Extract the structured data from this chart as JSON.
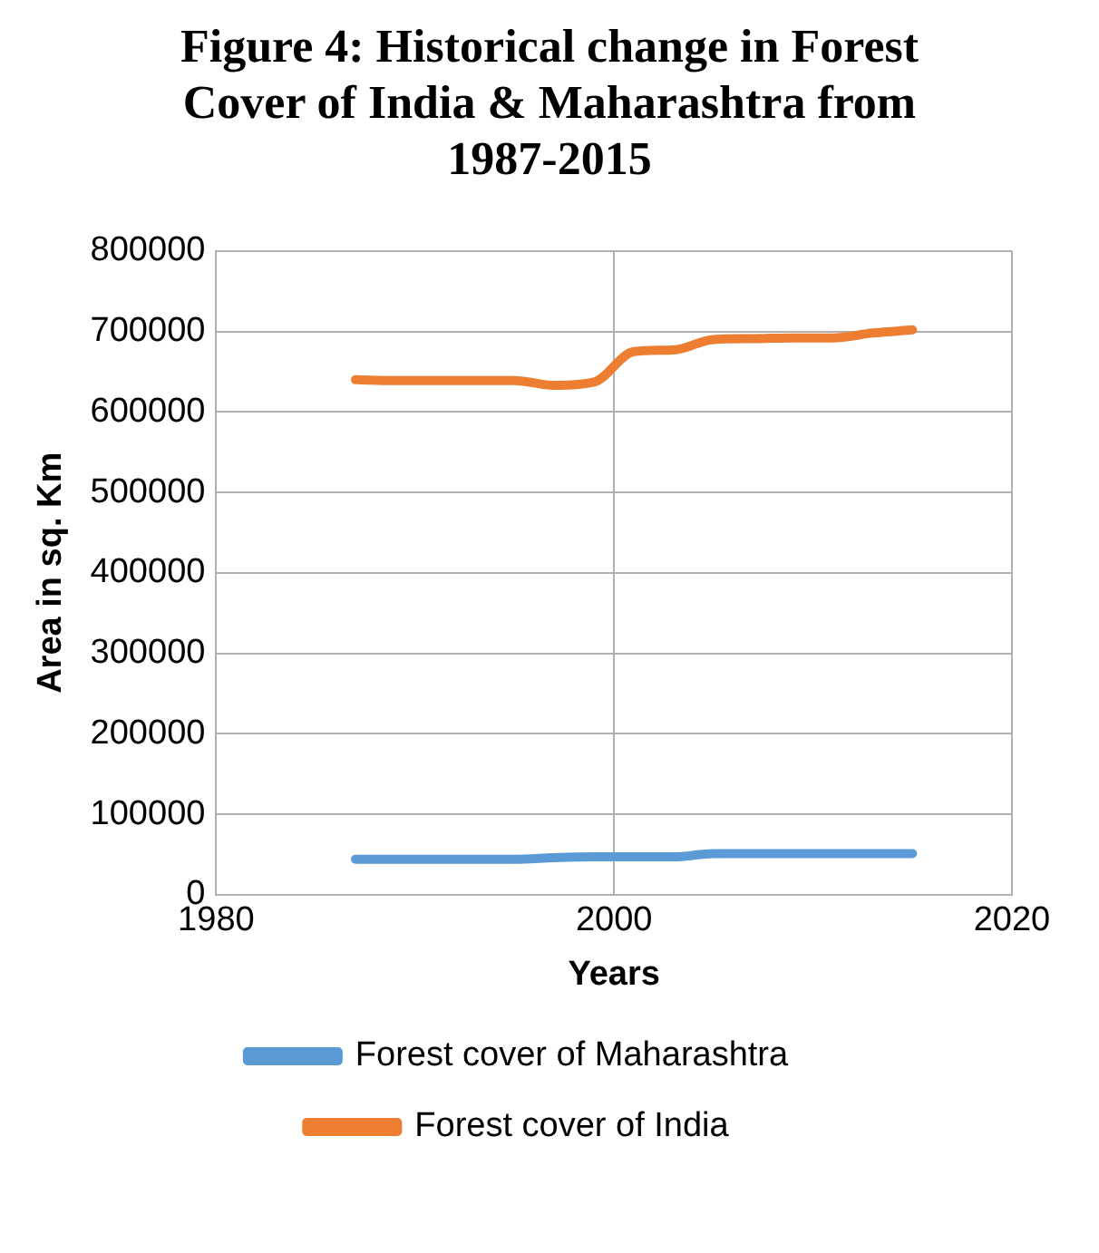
{
  "chart_data": {
    "type": "line",
    "title": "Figure 4: Historical change in Forest Cover of India & Maharashtra from 1987-2015",
    "xlabel": "Years",
    "ylabel": "Area in sq. Km",
    "x": [
      1987,
      1989,
      1991,
      1993,
      1995,
      1997,
      1999,
      2001,
      2003,
      2005,
      2007,
      2009,
      2011,
      2013,
      2015
    ],
    "series": [
      {
        "name": "Forest cover of Maharashtra",
        "color": "#5b9bd5",
        "values": [
          44000,
          44000,
          44000,
          44000,
          44000,
          46000,
          47000,
          47000,
          47000,
          51000,
          51000,
          51000,
          51000,
          51000,
          51000
        ]
      },
      {
        "name": "Forest cover of India",
        "color": "#ed7d31",
        "values": [
          640000,
          639000,
          639000,
          639000,
          639000,
          633000,
          637000,
          675000,
          677000,
          690000,
          691000,
          692000,
          692000,
          698000,
          702000
        ]
      }
    ],
    "xlim": [
      1980,
      2020
    ],
    "xticks": [
      1980,
      2000,
      2020
    ],
    "ylim": [
      0,
      800000
    ],
    "yticks": [
      0,
      100000,
      200000,
      300000,
      400000,
      500000,
      600000,
      700000,
      800000
    ],
    "grid": true,
    "legend": "bottom",
    "marker": "none",
    "line_style": "solid"
  }
}
